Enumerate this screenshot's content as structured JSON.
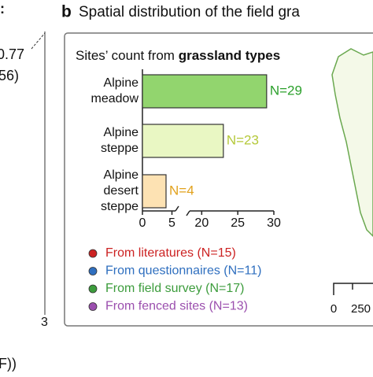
{
  "left_fragment": {
    "labels": [
      ":",
      "0.77",
      "56)",
      "3",
      "F))"
    ]
  },
  "panel_label": "b",
  "panel_title": "Spatial distribution of the field gra",
  "chart_data": {
    "type": "bar",
    "orientation": "horizontal",
    "title_parts": [
      "Sites’ count from ",
      "grassland types"
    ],
    "categories": [
      "Alpine meadow",
      "Alpine steppe",
      "Alpine desert steppe"
    ],
    "values": [
      29,
      23,
      4
    ],
    "value_labels": [
      "N=29",
      "N=23",
      "N=4"
    ],
    "colors": [
      "#92d56e",
      "#e9f7c3",
      "#fde2b3"
    ],
    "label_colors": [
      "#2ca02c",
      "#b5c93a",
      "#e2a21e"
    ],
    "xlim": [
      0,
      30
    ],
    "xbreak": [
      6,
      18
    ],
    "xticks": [
      0,
      5,
      20,
      25,
      30
    ]
  },
  "legend_items": [
    {
      "label": "From literatures (N=15)",
      "color": "#cc2222"
    },
    {
      "label": "From questionnaires (N=11)",
      "color": "#2f6fbf"
    },
    {
      "label": "From field survey (N=17)",
      "color": "#3c9c3c"
    },
    {
      "label": "From fenced sites (N=13)",
      "color": "#9b4fae"
    }
  ],
  "map": {
    "scale_labels": [
      "0",
      "250"
    ]
  }
}
